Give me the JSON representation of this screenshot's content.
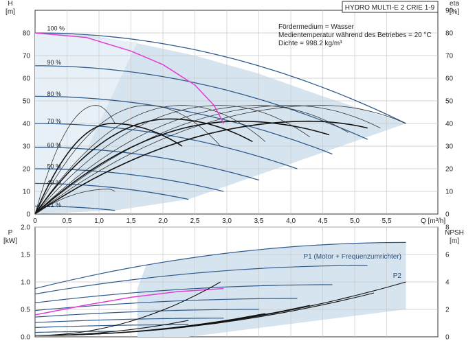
{
  "chart_data": [
    {
      "type": "line",
      "title": "HYDRO MULTI-E 2 CRIE 1-9",
      "xlabel": "Q [m³/h]",
      "ylabel": "H\n[m]",
      "y2label": "eta\n[%]",
      "xlim": [
        0,
        6.3
      ],
      "ylim": [
        0,
        90
      ],
      "xticks": [
        0,
        0.5,
        1.0,
        1.5,
        2.0,
        2.5,
        3.0,
        3.5,
        4.0,
        4.5,
        5.0,
        5.5
      ],
      "xtick_labels": [
        "0",
        "0,5",
        "1,0",
        "1,5",
        "2,0",
        "2,5",
        "3,0",
        "3,5",
        "4,0",
        "4,5",
        "5,0",
        "5,5"
      ],
      "yticks": [
        0,
        10,
        20,
        30,
        40,
        50,
        60,
        70,
        80
      ],
      "y2ticks": [
        0,
        10,
        20,
        30,
        40,
        50,
        60,
        70,
        80,
        90
      ],
      "grid": true,
      "notes": [
        "Fördermedium = Wasser",
        "Medientemperatur während des Betriebes = 20 °C",
        "Dichte = 998.2 kg/m³"
      ],
      "speed_labels": [
        {
          "label": "100 %",
          "q": 0.35,
          "h": 82
        },
        {
          "label": "90 %",
          "q": 0.35,
          "h": 67
        },
        {
          "label": "80 %",
          "q": 0.35,
          "h": 53
        },
        {
          "label": "70 %",
          "q": 0.35,
          "h": 41
        },
        {
          "label": "60 %",
          "q": 0.35,
          "h": 30.5
        },
        {
          "label": "50 %",
          "q": 0.35,
          "h": 21
        },
        {
          "label": "40 %",
          "q": 0.35,
          "h": 14
        },
        {
          "label": "21 %",
          "q": 0.35,
          "h": 4
        }
      ],
      "pump_curves": [
        {
          "h0": 80.0,
          "qmax": 5.8,
          "hend": 40.0
        },
        {
          "h0": 65.5,
          "qmax": 5.2,
          "hend": 33.0
        },
        {
          "h0": 52.0,
          "qmax": 4.65,
          "hend": 26.5
        },
        {
          "h0": 40.0,
          "qmax": 4.1,
          "hend": 20.0
        },
        {
          "h0": 29.5,
          "qmax": 3.5,
          "hend": 15.0
        },
        {
          "h0": 20.0,
          "qmax": 2.95,
          "hend": 10.0
        },
        {
          "h0": 13.5,
          "qmax": 2.4,
          "hend": 6.5
        },
        {
          "h0": 3.5,
          "qmax": 1.25,
          "hend": 1.6
        }
      ],
      "system_limit_curve": [
        [
          0,
          80
        ],
        [
          0.8,
          79
        ],
        [
          1.5,
          76
        ],
        [
          2.5,
          70
        ],
        [
          3.5,
          62
        ],
        [
          4.5,
          52
        ],
        [
          5.8,
          40
        ]
      ],
      "max_power_curve": [
        [
          0,
          80
        ],
        [
          0.8,
          78
        ],
        [
          1.5,
          72
        ],
        [
          2.0,
          66
        ],
        [
          2.5,
          57
        ],
        [
          2.8,
          48
        ],
        [
          2.95,
          40
        ]
      ],
      "eta_curves": [
        {
          "qmax": 0.95,
          "peak": 48,
          "qend": 1.25,
          "yend": 40,
          "scale": 1.0
        },
        {
          "qmax": 1.75,
          "peak": 48,
          "qend": 2.9,
          "yend": 30,
          "scale": 1.0
        },
        {
          "qmax": 2.3,
          "peak": 48,
          "qend": 3.6,
          "yend": 32,
          "scale": 1.0
        },
        {
          "qmax": 2.9,
          "peak": 48,
          "qend": 4.3,
          "yend": 34,
          "scale": 1.0
        },
        {
          "qmax": 3.5,
          "peak": 48,
          "qend": 4.9,
          "yend": 36,
          "scale": 1.0
        },
        {
          "qmax": 4.0,
          "peak": 48,
          "qend": 5.4,
          "yend": 38,
          "scale": 1.0
        },
        {
          "qmax": 4.5,
          "peak": 48,
          "qend": 5.8,
          "yend": 40,
          "scale": 1.0
        },
        {
          "qmax": 1.2,
          "peak": 40,
          "qend": 2.3,
          "yend": 30,
          "scale": 1.0
        },
        {
          "qmax": 2.1,
          "peak": 42,
          "qend": 3.4,
          "yend": 32,
          "scale": 1.0
        },
        {
          "qmax": 3.2,
          "peak": 41,
          "qend": 4.6,
          "yend": 35,
          "scale": 1.0
        },
        {
          "qmax": 4.3,
          "peak": 41,
          "qend": 5.2,
          "yend": 38,
          "scale": 1.0
        },
        {
          "qmax": 1.15,
          "peak": 11,
          "qend": 1.25,
          "yend": 10,
          "scale": 1.0
        }
      ]
    },
    {
      "type": "line",
      "ylabel": "P\n[kW]",
      "y2label": "NPSH\n[m]",
      "xlim": [
        0,
        6.3
      ],
      "ylim": [
        0,
        2.0
      ],
      "y2lim": [
        0,
        8
      ],
      "yticks": [
        0,
        0.5,
        1.0,
        1.5,
        2.0
      ],
      "ytick_labels": [
        "0.0",
        "0.5",
        "1.0",
        "1.5",
        "2.0"
      ],
      "y2ticks": [
        0,
        2,
        4,
        6,
        8
      ],
      "grid": true,
      "series_labels": [
        "P1 (Motor + Frequenzumrichter)",
        "P2"
      ],
      "power_curves": [
        {
          "p0": 0.88,
          "qmax": 5.8,
          "pend": 1.72
        },
        {
          "p0": 0.78,
          "qmax": 5.2,
          "pend": 1.3
        },
        {
          "p0": 0.62,
          "qmax": 4.65,
          "pend": 0.95
        },
        {
          "p0": 0.48,
          "qmax": 4.1,
          "pend": 0.7
        },
        {
          "p0": 0.36,
          "qmax": 3.5,
          "pend": 0.5
        },
        {
          "p0": 0.26,
          "qmax": 2.95,
          "pend": 0.34
        },
        {
          "p0": 0.17,
          "qmax": 2.4,
          "pend": 0.22
        },
        {
          "p0": 0.08,
          "qmax": 1.25,
          "pend": 0.1
        }
      ],
      "power_limit_curve": [
        [
          0,
          0.4
        ],
        [
          0.8,
          0.58
        ],
        [
          1.5,
          0.72
        ],
        [
          2.2,
          0.82
        ],
        [
          2.95,
          0.88
        ]
      ],
      "npsh_curves": [
        {
          "qend": 5.8,
          "yend": 4.0
        },
        {
          "qend": 5.3,
          "yend": 3.2
        },
        {
          "qend": 4.3,
          "yend": 2.3
        },
        {
          "qend": 3.6,
          "yend": 1.7
        },
        {
          "qend": 2.9,
          "yend": 4.0
        },
        {
          "qend": 2.4,
          "yend": 1.2
        }
      ]
    }
  ]
}
